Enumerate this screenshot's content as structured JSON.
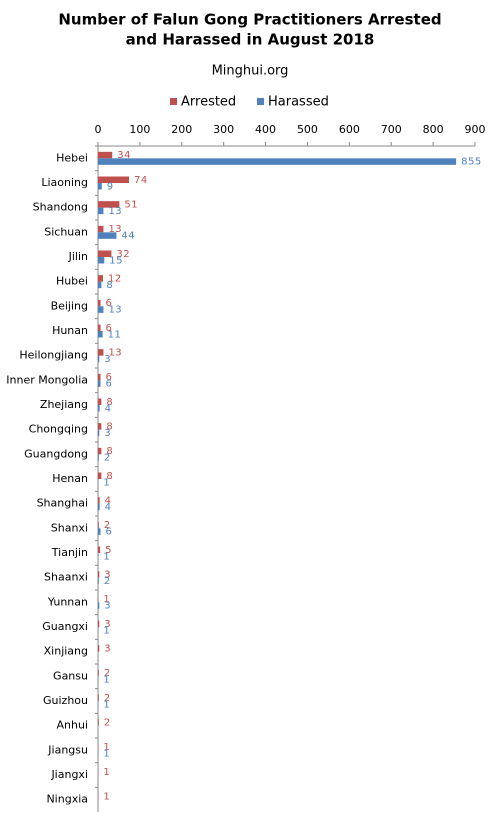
{
  "chart_data": {
    "type": "barh",
    "title": [
      "Number of Falun Gong Practitioners Arrested",
      "and Harassed in August 2018"
    ],
    "subtitle": "Minghui.org",
    "categories": [
      "Hebei",
      "Liaoning",
      "Shandong",
      "Sichuan",
      "Jilin",
      "Hubei",
      "Beijing",
      "Hunan",
      "Heilongjiang",
      "Inner Mongolia",
      "Zhejiang",
      "Chongqing",
      "Guangdong",
      "Henan",
      "Shanghai",
      "Shanxi",
      "Tianjin",
      "Shaanxi",
      "Yunnan",
      "Guangxi",
      "Xinjiang",
      "Gansu",
      "Guizhou",
      "Anhui",
      "Jiangsu",
      "Jiangxi",
      "Ningxia"
    ],
    "series": [
      {
        "name": "Arrested",
        "color": "#c0504d",
        "values": [
          34,
          74,
          51,
          13,
          32,
          12,
          6,
          6,
          13,
          6,
          8,
          8,
          8,
          8,
          4,
          2,
          5,
          3,
          1,
          3,
          3,
          2,
          2,
          2,
          1,
          1,
          1
        ]
      },
      {
        "name": "Harassed",
        "color": "#4f81bd",
        "values": [
          855,
          9,
          13,
          44,
          15,
          8,
          13,
          11,
          3,
          6,
          4,
          3,
          2,
          1,
          4,
          6,
          1,
          2,
          3,
          1,
          null,
          1,
          1,
          null,
          1,
          null,
          null
        ]
      }
    ],
    "xlim": [
      0,
      900
    ],
    "xticks": [
      0,
      100,
      200,
      300,
      400,
      500,
      600,
      700,
      800,
      900
    ],
    "legend": "top"
  }
}
